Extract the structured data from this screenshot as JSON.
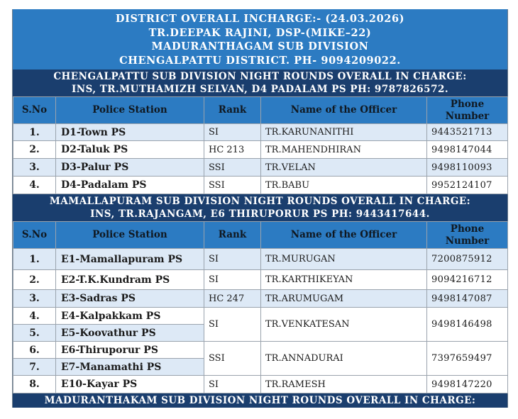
{
  "banner": {
    "line1": "DISTRICT OVERALL INCHARGE:- (24.03.2026)",
    "line2": "TR.DEEPAK RAJINI, DSP-(MIKE–22)",
    "line3": "MADURANTHAGAM SUB DIVISION",
    "line4": "CHENGALPATTU DISTRICT. PH- 9094209022."
  },
  "columns": {
    "sno": "S.No",
    "station": "Police Station",
    "rank": "Rank",
    "name": "Name of the Officer",
    "phone_line1": "Phone",
    "phone_line2": "Number"
  },
  "sections": [
    {
      "line1": "CHENGALPATTU SUB DIVISION NIGHT ROUNDS OVERALL IN CHARGE:",
      "line2": "INS, TR.MUTHAMIZH SELVAN, D4 PADALAM PS PH: 9787826572.",
      "rows": [
        {
          "sno": "1.",
          "station": "D1-Town PS",
          "rank": "SI",
          "name": "TR.KARUNANITHI",
          "phone": "9443521713"
        },
        {
          "sno": "2.",
          "station": "D2-Taluk PS",
          "rank": "HC 213",
          "name": "TR.MAHENDHIRAN",
          "phone": "9498147044"
        },
        {
          "sno": "3.",
          "station": "D3-Palur PS",
          "rank": "SSI",
          "name": "TR.VELAN",
          "phone": "9498110093"
        },
        {
          "sno": "4.",
          "station": "D4-Padalam PS",
          "rank": "SSI",
          "name": "TR.BABU",
          "phone": "9952124107"
        }
      ]
    },
    {
      "line1": "MAMALLAPURAM SUB DIVISION NIGHT ROUNDS OVERALL IN CHARGE:",
      "line2": "INS, TR.RAJANGAM, E6 THIRUPORUR PS PH: 9443417644.",
      "rows": [
        {
          "sno": "1.",
          "station": "E1-Mamallapuram PS",
          "rank": "SI",
          "name": "TR.MURUGAN",
          "phone": "7200875912"
        },
        {
          "sno": "2.",
          "station": "E2-T.K.Kundram PS",
          "rank": "SI",
          "name": "TR.KARTHIKEYAN",
          "phone": "9094216712"
        },
        {
          "sno": "3.",
          "station": "E3-Sadras PS",
          "rank": "HC 247",
          "name": "TR.ARUMUGAM",
          "phone": "9498147087"
        },
        {
          "sno": "4.",
          "station": "E4-Kalpakkam PS",
          "rank": "SI",
          "name": "TR.VENKATESAN",
          "phone": "9498146498"
        },
        {
          "sno": "5.",
          "station": "E5-Koovathur PS"
        },
        {
          "sno": "6.",
          "station": "E6-Thiruporur PS",
          "rank": "SSI",
          "name": "TR.ANNADURAI",
          "phone": "7397659497"
        },
        {
          "sno": "7.",
          "station": "E7-Manamathi PS"
        },
        {
          "sno": "8.",
          "station": "E10-Kayar PS",
          "rank": "SI",
          "name": "TR.RAMESH",
          "phone": "9498147220"
        }
      ]
    },
    {
      "line1": "MADURANTHAKAM SUB DIVISION NIGHT ROUNDS OVERALL IN CHARGE:"
    }
  ]
}
